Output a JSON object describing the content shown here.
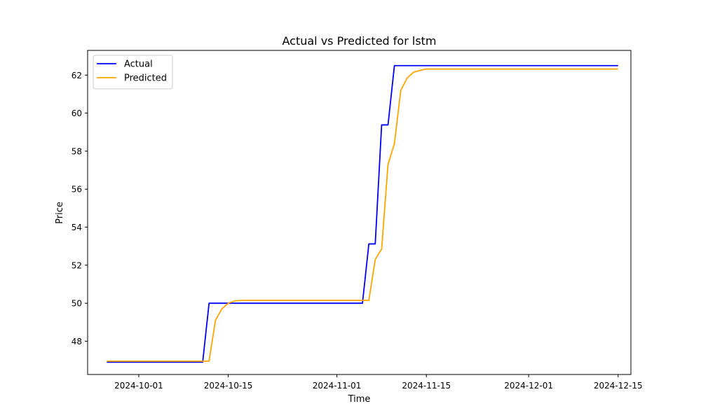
{
  "chart_data": {
    "type": "line",
    "title": "Actual vs Predicted for lstm",
    "xlabel": "Time",
    "ylabel": "Price",
    "x_ticks": [
      "2024-10-01",
      "2024-10-15",
      "2024-11-01",
      "2024-11-15",
      "2024-12-01",
      "2024-12-15"
    ],
    "y_ticks": [
      48,
      50,
      52,
      54,
      56,
      58,
      60,
      62
    ],
    "xlim": [
      "2024-09-23",
      "2024-12-17"
    ],
    "ylim": [
      46.25,
      63.3
    ],
    "grid": false,
    "legend_position": "upper left",
    "series": [
      {
        "name": "Actual",
        "color": "#0000ff",
        "points": [
          [
            "2024-09-26",
            46.9
          ],
          [
            "2024-10-11",
            46.9
          ],
          [
            "2024-10-12",
            50.0
          ],
          [
            "2024-11-05",
            50.0
          ],
          [
            "2024-11-06",
            53.12
          ],
          [
            "2024-11-07",
            53.12
          ],
          [
            "2024-11-08",
            59.38
          ],
          [
            "2024-11-09",
            59.38
          ],
          [
            "2024-11-10",
            62.5
          ],
          [
            "2024-12-15",
            62.5
          ]
        ]
      },
      {
        "name": "Predicted",
        "color": "#ffa500",
        "points": [
          [
            "2024-09-26",
            46.95
          ],
          [
            "2024-10-12",
            46.95
          ],
          [
            "2024-10-13",
            49.1
          ],
          [
            "2024-10-14",
            49.7
          ],
          [
            "2024-10-15",
            50.0
          ],
          [
            "2024-10-16",
            50.12
          ],
          [
            "2024-10-17",
            50.15
          ],
          [
            "2024-11-06",
            50.15
          ],
          [
            "2024-11-07",
            52.3
          ],
          [
            "2024-11-08",
            52.85
          ],
          [
            "2024-11-09",
            57.3
          ],
          [
            "2024-11-10",
            58.4
          ],
          [
            "2024-11-11",
            61.2
          ],
          [
            "2024-11-12",
            61.85
          ],
          [
            "2024-11-13",
            62.15
          ],
          [
            "2024-11-14",
            62.25
          ],
          [
            "2024-11-15",
            62.32
          ],
          [
            "2024-12-15",
            62.32
          ]
        ]
      }
    ]
  }
}
